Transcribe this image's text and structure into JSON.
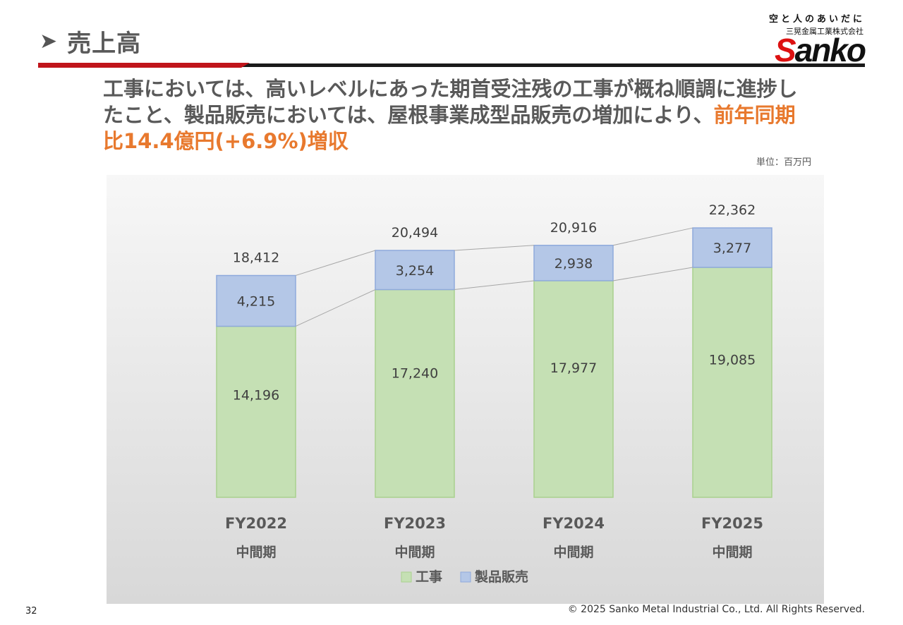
{
  "header": {
    "title": "売上高",
    "arrow_icon": "arrow-bullet-icon"
  },
  "logo": {
    "tagline": "空と人のあいだに",
    "company": "三晃金属工業株式会社",
    "mark_s": "S",
    "mark_rest": "anko"
  },
  "headline": {
    "text_main": "工事においては、高いレベルにあった期首受注残の工事が概ね順調に進捗したこと、製品販売においては、屋根事業成型品販売の増加により、",
    "text_highlight": "前年同期比14.4億円(+6.9%)増収"
  },
  "unit_label": "単位：百万円",
  "colors": {
    "construction": "#c5e0b4",
    "construction_border": "#a9d18e",
    "products": "#b4c7e7",
    "products_border": "#8faadc",
    "highlight": "#e8792e"
  },
  "chart_data": {
    "type": "bar",
    "stacked": true,
    "categories": [
      "FY2022",
      "FY2023",
      "FY2024",
      "FY2025"
    ],
    "category_sublabel": "中間期",
    "series": [
      {
        "name": "工事",
        "values": [
          14196,
          17240,
          17977,
          19085
        ]
      },
      {
        "name": "製品販売",
        "values": [
          4215,
          3254,
          2938,
          3277
        ]
      }
    ],
    "value_labels": {
      "工事": [
        "14,196",
        "17,240",
        "17,977",
        "19,085"
      ],
      "製品販売": [
        "4,215",
        "3,254",
        "2,938",
        "3,277"
      ]
    },
    "totals": [
      "18,412",
      "20,494",
      "20,916",
      "22,362"
    ],
    "ylim": [
      0,
      25000
    ],
    "legend_position": "bottom",
    "series_lines": true,
    "unit": "百万円"
  },
  "footer": {
    "page_number": "32",
    "copyright": "© 2025 Sanko Metal Industrial Co., Ltd. All Rights Reserved."
  }
}
